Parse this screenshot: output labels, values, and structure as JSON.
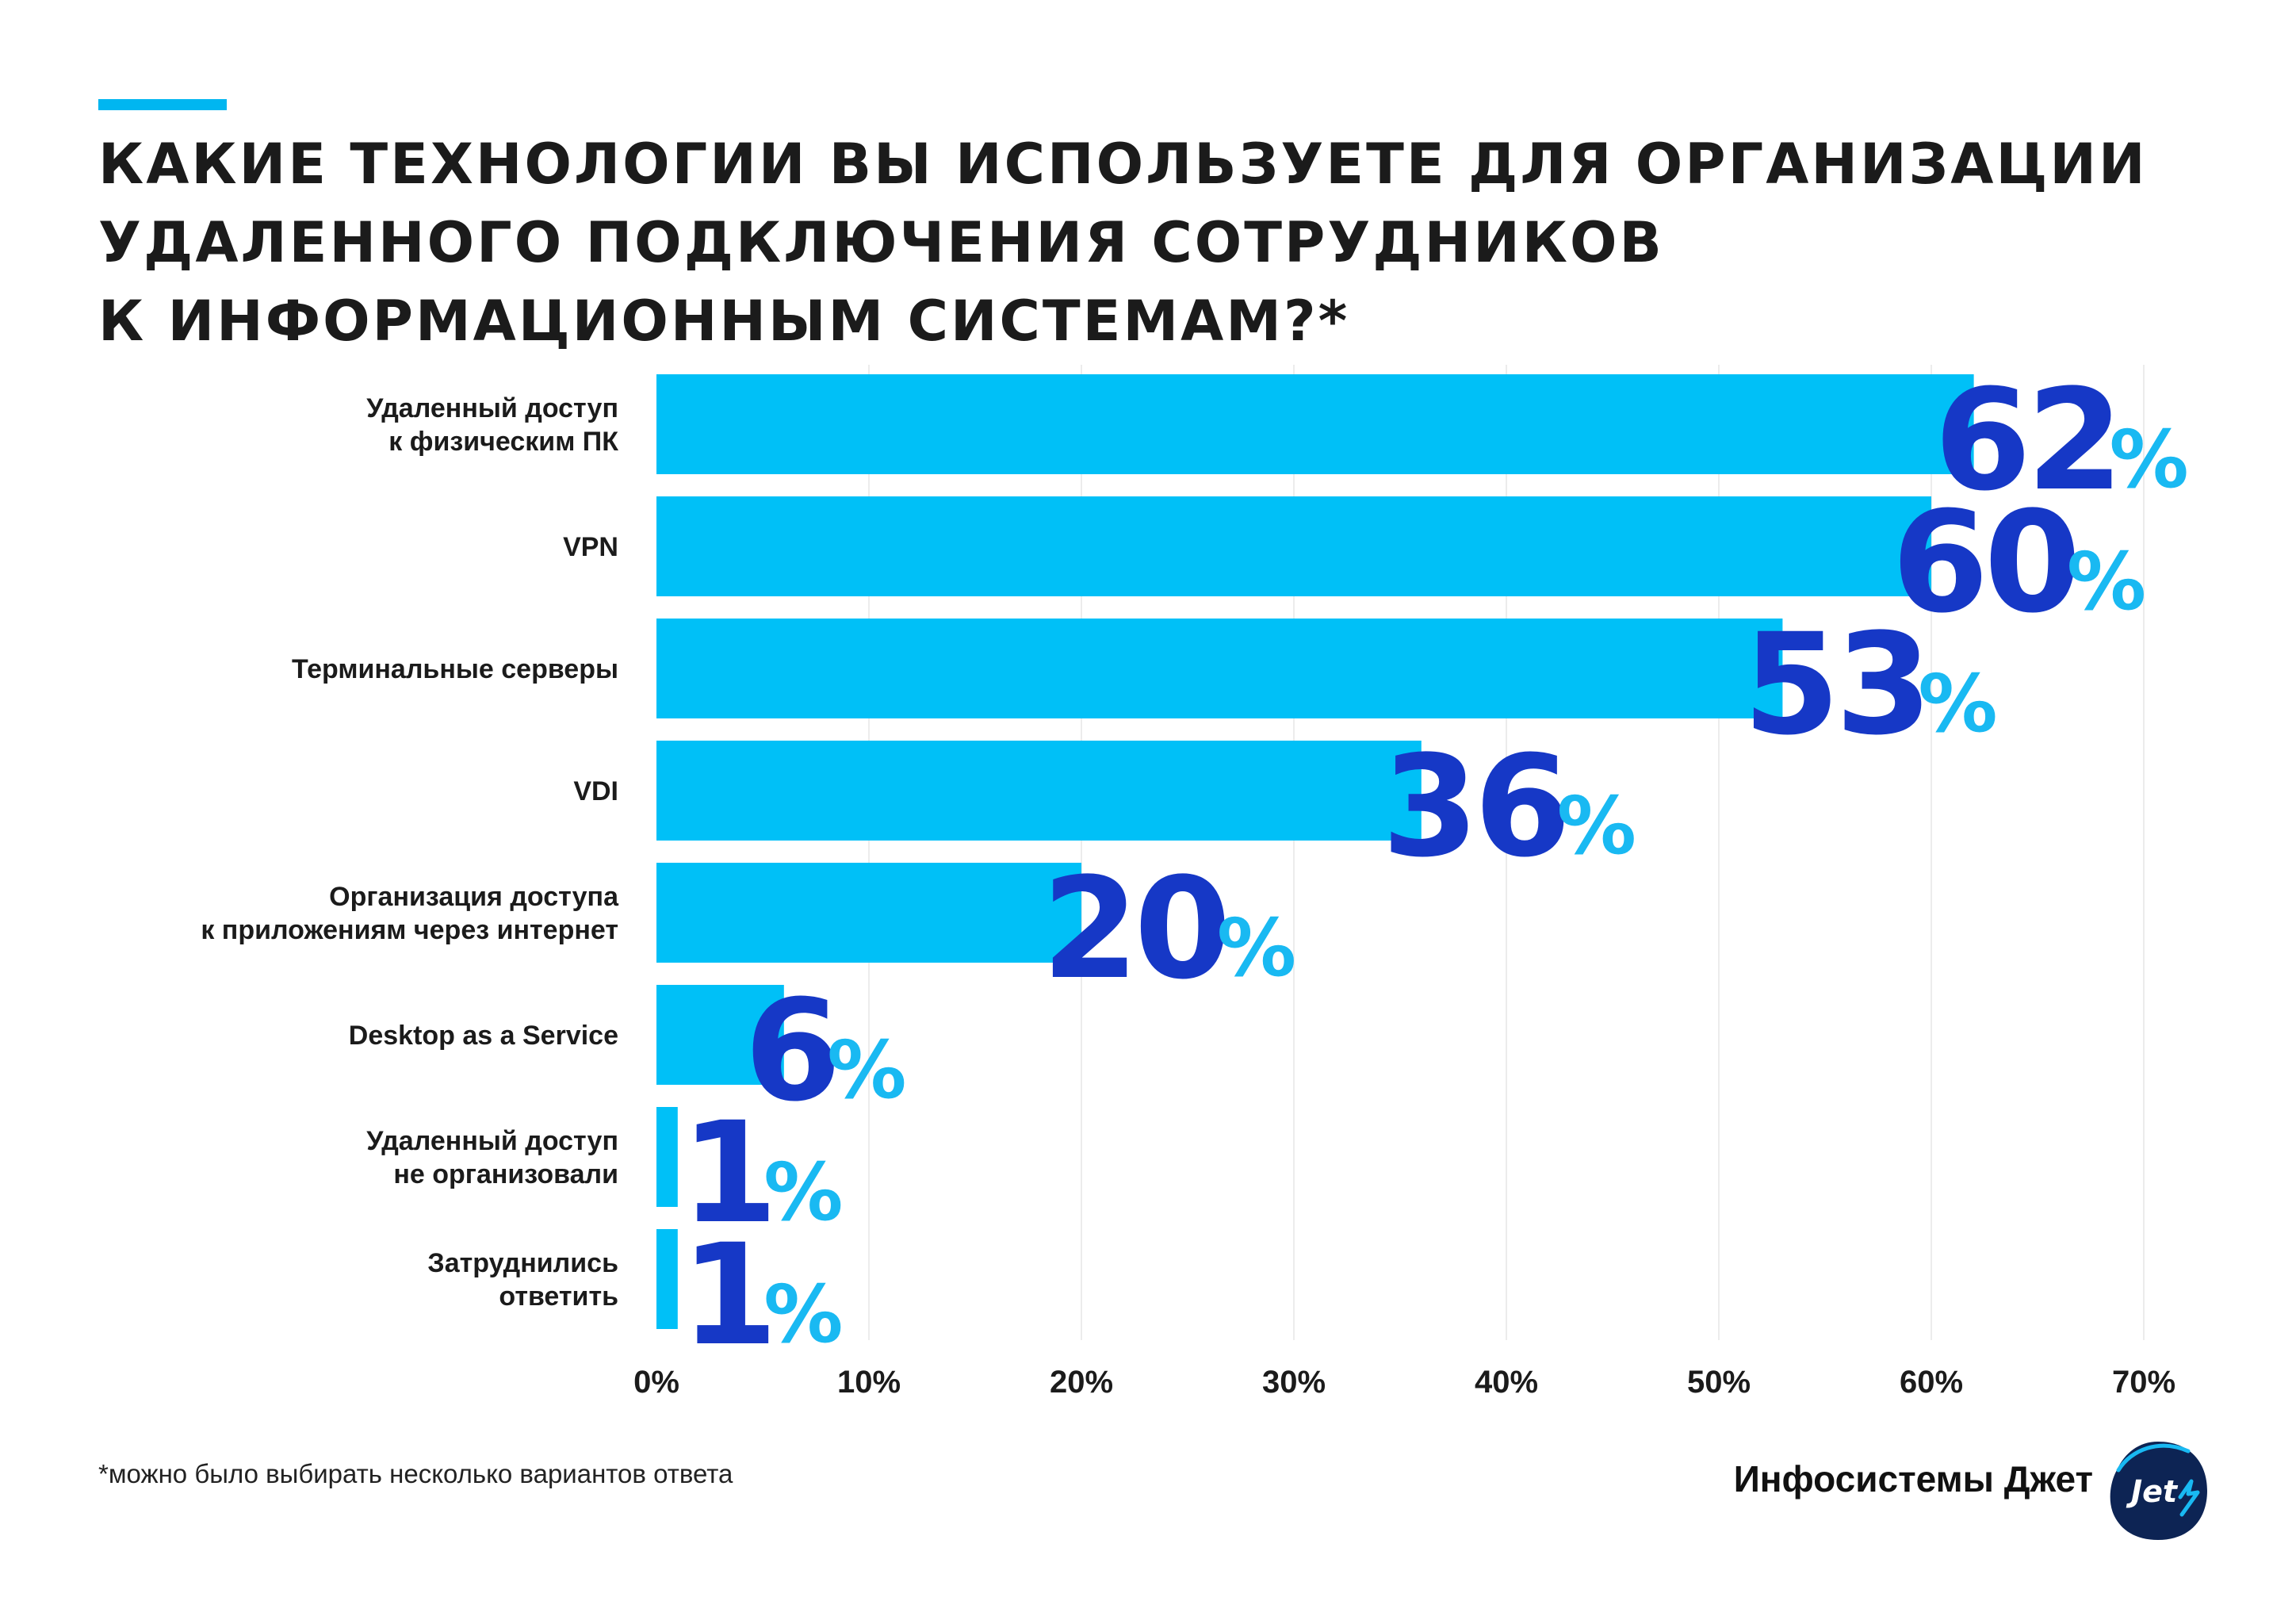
{
  "title": {
    "lines": [
      "КАКИЕ ТЕХНОЛОГИИ ВЫ ИСПОЛЬЗУЕТЕ ДЛЯ ОРГАНИЗАЦИИ",
      "УДАЛЕННОГО ПОДКЛЮЧЕНИЯ СОТРУДНИКОВ",
      "К ИНФОРМАЦИОННЫМ СИСТЕМАМ?*"
    ]
  },
  "footnote": "*можно было выбирать несколько вариантов ответа",
  "brand": {
    "name": "Инфосистемы Джет",
    "logo_text": "Jet"
  },
  "colors": {
    "bar": "#00c0f7",
    "value_number": "#1638c6",
    "value_percent": "#19b9f2",
    "accent": "#00b6f0",
    "logo_bg": "#0d2454"
  },
  "chart_data": {
    "type": "bar",
    "orientation": "horizontal",
    "categories": [
      [
        "Удаленный доступ",
        "к физическим ПК"
      ],
      [
        "VPN"
      ],
      [
        "Терминальные серверы"
      ],
      [
        "VDI"
      ],
      [
        "Организация доступа",
        "к приложениям через интернет"
      ],
      [
        "Desktop as a Service"
      ],
      [
        "Удаленный доступ",
        "не организовали"
      ],
      [
        "Затруднились",
        "ответить"
      ]
    ],
    "values": [
      62,
      60,
      53,
      36,
      20,
      6,
      1,
      1
    ],
    "value_suffix": "%",
    "xlim": [
      0,
      70
    ],
    "xticks": [
      0,
      10,
      20,
      30,
      40,
      50,
      60,
      70
    ],
    "tick_labels": [
      "0%",
      "10%",
      "20%",
      "30%",
      "40%",
      "50%",
      "60%",
      "70%"
    ],
    "grid": true
  }
}
